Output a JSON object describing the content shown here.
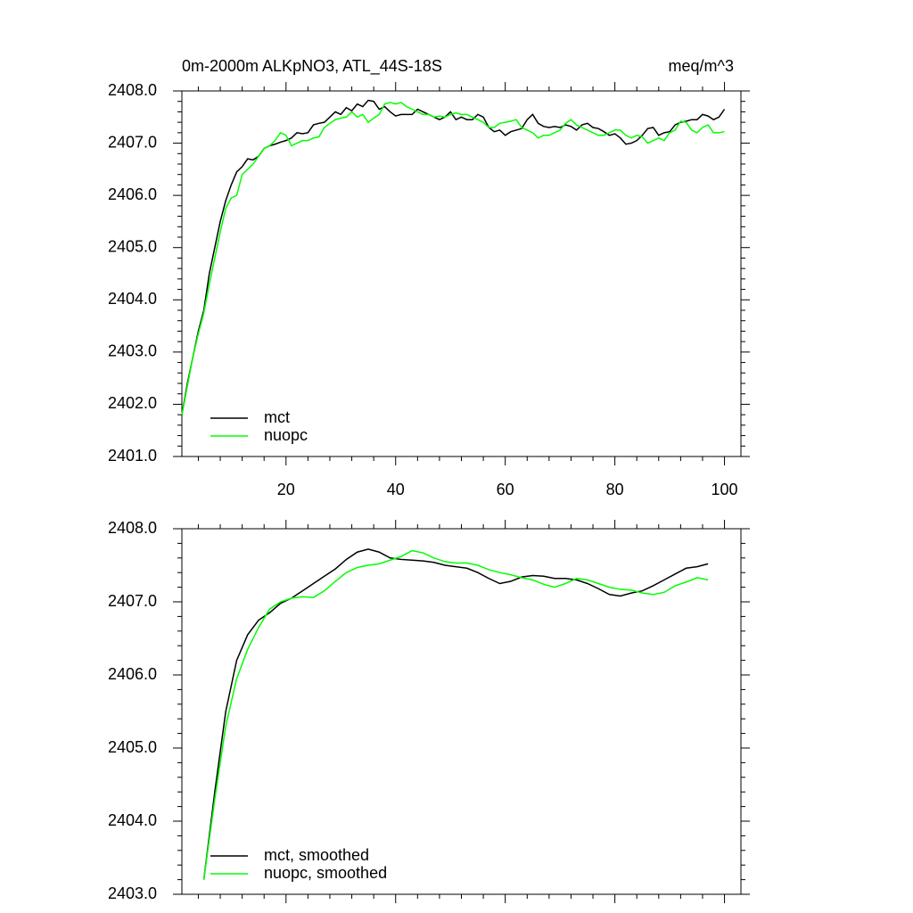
{
  "chart_data": [
    {
      "type": "line",
      "title": "0m-2000m ALKpNO3, ATL_44S-18S",
      "units_label": "meq/m^3",
      "x": [
        1,
        2,
        3,
        4,
        5,
        6,
        7,
        8,
        9,
        10,
        11,
        12,
        13,
        14,
        15,
        16,
        17,
        18,
        19,
        20,
        21,
        22,
        23,
        24,
        25,
        26,
        27,
        28,
        29,
        30,
        31,
        32,
        33,
        34,
        35,
        36,
        37,
        38,
        39,
        40,
        41,
        42,
        43,
        44,
        45,
        46,
        47,
        48,
        49,
        50,
        51,
        52,
        53,
        54,
        55,
        56,
        57,
        58,
        59,
        60,
        61,
        62,
        63,
        64,
        65,
        66,
        67,
        68,
        69,
        70,
        71,
        72,
        73,
        74,
        75,
        76,
        77,
        78,
        79,
        80,
        81,
        82,
        83,
        84,
        85,
        86,
        87,
        88,
        89,
        90,
        91,
        92,
        93,
        94,
        95,
        96,
        97,
        98,
        99,
        100
      ],
      "xlim": [
        1,
        103
      ],
      "xticks": [
        20,
        40,
        60,
        80,
        100
      ],
      "ylim": [
        2401,
        2408
      ],
      "yticks": [
        {
          "value": 2401,
          "label": "2401.0"
        },
        {
          "value": 2402,
          "label": "2402.0"
        },
        {
          "value": 2403,
          "label": "2403.0"
        },
        {
          "value": 2404,
          "label": "2404.0"
        },
        {
          "value": 2405,
          "label": "2405.0"
        },
        {
          "value": 2406,
          "label": "2406.0"
        },
        {
          "value": 2407,
          "label": "2407.0"
        },
        {
          "value": 2408,
          "label": "2408.0"
        }
      ],
      "legend": "lower left",
      "series": [
        {
          "name": "mct",
          "color": "#000000",
          "values": [
            2401.8,
            2402.4,
            2402.9,
            2403.4,
            2403.8,
            2404.5,
            2405.0,
            2405.5,
            2405.9,
            2406.2,
            2406.45,
            2406.55,
            2406.7,
            2406.68,
            2406.75,
            2406.9,
            2406.95,
            2406.98,
            2407.02,
            2407.05,
            2407.1,
            2407.2,
            2407.18,
            2407.2,
            2407.35,
            2407.38,
            2407.4,
            2407.5,
            2407.6,
            2407.55,
            2407.68,
            2407.62,
            2407.75,
            2407.7,
            2407.82,
            2407.8,
            2407.65,
            2407.7,
            2407.6,
            2407.52,
            2407.55,
            2407.55,
            2407.55,
            2407.65,
            2407.6,
            2407.55,
            2407.5,
            2407.45,
            2407.5,
            2407.6,
            2407.45,
            2407.5,
            2407.45,
            2407.45,
            2407.55,
            2407.5,
            2407.3,
            2407.22,
            2407.25,
            2407.15,
            2407.22,
            2407.25,
            2407.28,
            2407.45,
            2407.55,
            2407.38,
            2407.32,
            2407.3,
            2407.32,
            2407.3,
            2407.35,
            2407.32,
            2407.25,
            2407.35,
            2407.38,
            2407.3,
            2407.28,
            2407.22,
            2407.15,
            2407.18,
            2407.1,
            2406.98,
            2407.0,
            2407.05,
            2407.15,
            2407.28,
            2407.3,
            2407.15,
            2407.2,
            2407.22,
            2407.35,
            2407.4,
            2407.42,
            2407.45,
            2407.45,
            2407.55,
            2407.52,
            2407.45,
            2407.5,
            2407.65
          ]
        },
        {
          "name": "nuopc",
          "color": "#00ff00",
          "values": [
            2401.8,
            2402.35,
            2402.9,
            2403.35,
            2403.75,
            2404.3,
            2404.8,
            2405.3,
            2405.75,
            2405.95,
            2406.0,
            2406.4,
            2406.5,
            2406.6,
            2406.75,
            2406.9,
            2406.95,
            2407.05,
            2407.2,
            2407.15,
            2406.95,
            2407.0,
            2407.05,
            2407.05,
            2407.1,
            2407.12,
            2407.3,
            2407.38,
            2407.45,
            2407.48,
            2407.5,
            2407.6,
            2407.5,
            2407.55,
            2407.4,
            2407.48,
            2407.55,
            2407.75,
            2407.78,
            2407.75,
            2407.78,
            2407.7,
            2407.65,
            2407.6,
            2407.55,
            2407.55,
            2407.5,
            2407.52,
            2407.5,
            2407.55,
            2407.58,
            2407.55,
            2407.55,
            2407.5,
            2407.45,
            2407.4,
            2407.3,
            2407.3,
            2407.38,
            2407.4,
            2407.42,
            2407.45,
            2407.3,
            2407.25,
            2407.2,
            2407.1,
            2407.15,
            2407.15,
            2407.2,
            2407.25,
            2407.38,
            2407.45,
            2407.35,
            2407.3,
            2407.25,
            2407.2,
            2407.15,
            2407.15,
            2407.2,
            2407.25,
            2407.25,
            2407.15,
            2407.1,
            2407.15,
            2407.12,
            2407.0,
            2407.05,
            2407.1,
            2407.05,
            2407.2,
            2407.25,
            2407.42,
            2407.4,
            2407.25,
            2407.2,
            2407.3,
            2407.35,
            2407.2,
            2407.2,
            2407.22
          ]
        }
      ]
    },
    {
      "type": "line",
      "x": [
        5,
        7,
        9,
        11,
        13,
        15,
        17,
        19,
        21,
        23,
        25,
        27,
        29,
        31,
        33,
        35,
        37,
        39,
        41,
        43,
        45,
        47,
        49,
        51,
        53,
        55,
        57,
        59,
        61,
        63,
        65,
        67,
        69,
        71,
        73,
        75,
        77,
        79,
        81,
        83,
        85,
        87,
        89,
        91,
        93,
        95,
        97
      ],
      "xlim": [
        1,
        103
      ],
      "xticks": [
        20,
        40,
        60,
        80,
        100
      ],
      "xtick_labels": false,
      "ylim": [
        2403,
        2408
      ],
      "yticks": [
        {
          "value": 2403,
          "label": "2403.0"
        },
        {
          "value": 2404,
          "label": "2404.0"
        },
        {
          "value": 2405,
          "label": "2405.0"
        },
        {
          "value": 2406,
          "label": "2406.0"
        },
        {
          "value": 2407,
          "label": "2407.0"
        },
        {
          "value": 2408,
          "label": "2408.0"
        }
      ],
      "legend": "lower left",
      "series": [
        {
          "name": "mct, smoothed",
          "color": "#000000",
          "values": [
            2403.2,
            2404.4,
            2405.5,
            2406.2,
            2406.55,
            2406.75,
            2406.85,
            2406.98,
            2407.05,
            2407.15,
            2407.25,
            2407.35,
            2407.45,
            2407.58,
            2407.68,
            2407.72,
            2407.68,
            2407.6,
            2407.58,
            2407.57,
            2407.56,
            2407.54,
            2407.5,
            2407.48,
            2407.46,
            2407.4,
            2407.32,
            2407.25,
            2407.28,
            2407.34,
            2407.36,
            2407.35,
            2407.32,
            2407.32,
            2407.3,
            2407.25,
            2407.18,
            2407.1,
            2407.08,
            2407.12,
            2407.15,
            2407.22,
            2407.3,
            2407.38,
            2407.46,
            2407.48,
            2407.52
          ]
        },
        {
          "name": "nuopc, smoothed",
          "color": "#00ff00",
          "values": [
            2403.2,
            2404.3,
            2405.3,
            2405.95,
            2406.35,
            2406.65,
            2406.9,
            2407.0,
            2407.05,
            2407.07,
            2407.06,
            2407.15,
            2407.28,
            2407.4,
            2407.47,
            2407.5,
            2407.52,
            2407.57,
            2407.62,
            2407.7,
            2407.67,
            2407.6,
            2407.55,
            2407.53,
            2407.53,
            2407.5,
            2407.44,
            2407.4,
            2407.37,
            2407.33,
            2407.3,
            2407.24,
            2407.2,
            2407.25,
            2407.32,
            2407.3,
            2407.25,
            2407.2,
            2407.17,
            2407.16,
            2407.12,
            2407.1,
            2407.13,
            2407.22,
            2407.27,
            2407.33,
            2407.3
          ]
        }
      ]
    }
  ]
}
